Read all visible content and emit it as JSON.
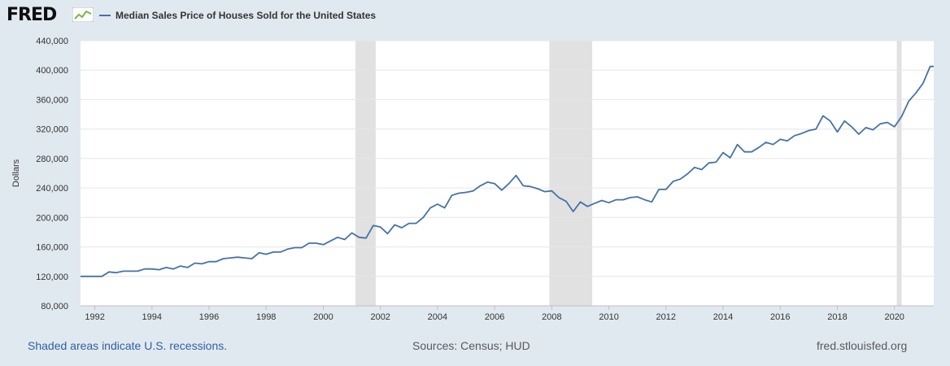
{
  "header": {
    "logo_text": "FRED",
    "logo_icon": "mini-line-chart-icon",
    "legend_label": "Median Sales Price of Houses Sold for the United States"
  },
  "footer": {
    "recession_note": "Shaded areas indicate U.S. recessions.",
    "sources": "Sources: Census; HUD",
    "site": "fred.stlouisfed.org"
  },
  "colors": {
    "line": "#4572a7",
    "recession": "#e1e1e1",
    "page_bg": "#e1e9f0",
    "plot_bg": "#ffffff",
    "grid": "#e6e6e6"
  },
  "chart_data": {
    "type": "line",
    "title": "",
    "xlabel": "",
    "ylabel": "Dollars",
    "xlim": [
      1991.5,
      2021.375
    ],
    "ylim": [
      80000,
      440000
    ],
    "grid": true,
    "legend_position": "top-left",
    "x_ticks": [
      1992,
      1994,
      1996,
      1998,
      2000,
      2002,
      2004,
      2006,
      2008,
      2010,
      2012,
      2014,
      2016,
      2018,
      2020
    ],
    "x_tick_labels": [
      "1992",
      "1994",
      "1996",
      "1998",
      "2000",
      "2002",
      "2004",
      "2006",
      "2008",
      "2010",
      "2012",
      "2014",
      "2016",
      "2018",
      "2020"
    ],
    "y_ticks": [
      80000,
      120000,
      160000,
      200000,
      240000,
      280000,
      320000,
      360000,
      400000,
      440000
    ],
    "y_tick_labels": [
      "80,000",
      "120,000",
      "160,000",
      "200,000",
      "240,000",
      "280,000",
      "320,000",
      "360,000",
      "400,000",
      "440,000"
    ],
    "recessions": [
      [
        2001.125,
        2001.833
      ],
      [
        2007.917,
        2009.417
      ],
      [
        2020.083,
        2020.25
      ]
    ],
    "series": [
      {
        "name": "Median Sales Price of Houses Sold for the United States",
        "x": [
          1991.5,
          1991.75,
          1992.0,
          1992.25,
          1992.5,
          1992.75,
          1993.0,
          1993.25,
          1993.5,
          1993.75,
          1994.0,
          1994.25,
          1994.5,
          1994.75,
          1995.0,
          1995.25,
          1995.5,
          1995.75,
          1996.0,
          1996.25,
          1996.5,
          1996.75,
          1997.0,
          1997.25,
          1997.5,
          1997.75,
          1998.0,
          1998.25,
          1998.5,
          1998.75,
          1999.0,
          1999.25,
          1999.5,
          1999.75,
          2000.0,
          2000.25,
          2000.5,
          2000.75,
          2001.0,
          2001.25,
          2001.5,
          2001.75,
          2002.0,
          2002.25,
          2002.5,
          2002.75,
          2003.0,
          2003.25,
          2003.5,
          2003.75,
          2004.0,
          2004.25,
          2004.5,
          2004.75,
          2005.0,
          2005.25,
          2005.5,
          2005.75,
          2006.0,
          2006.25,
          2006.5,
          2006.75,
          2007.0,
          2007.25,
          2007.5,
          2007.75,
          2008.0,
          2008.25,
          2008.5,
          2008.75,
          2009.0,
          2009.25,
          2009.5,
          2009.75,
          2010.0,
          2010.25,
          2010.5,
          2010.75,
          2011.0,
          2011.25,
          2011.5,
          2011.75,
          2012.0,
          2012.25,
          2012.5,
          2012.75,
          2013.0,
          2013.25,
          2013.5,
          2013.75,
          2014.0,
          2014.25,
          2014.5,
          2014.75,
          2015.0,
          2015.25,
          2015.5,
          2015.75,
          2016.0,
          2016.25,
          2016.5,
          2016.75,
          2017.0,
          2017.25,
          2017.5,
          2017.75,
          2018.0,
          2018.25,
          2018.5,
          2018.75,
          2019.0,
          2019.25,
          2019.5,
          2019.75,
          2020.0,
          2020.25,
          2020.5,
          2020.75,
          2021.0,
          2021.25,
          2021.375
        ],
        "values": [
          120000,
          120000,
          120000,
          120000,
          126000,
          125000,
          127000,
          127000,
          127000,
          130000,
          130000,
          129000,
          132000,
          130000,
          134000,
          132000,
          138000,
          137000,
          140000,
          140000,
          144000,
          145000,
          146000,
          145000,
          144000,
          152000,
          150000,
          153000,
          153000,
          157000,
          159000,
          159000,
          165000,
          165000,
          163000,
          168000,
          173000,
          170000,
          179000,
          173000,
          172000,
          189000,
          187000,
          178000,
          190000,
          186000,
          192000,
          192000,
          200000,
          213000,
          218000,
          213000,
          230000,
          233000,
          234000,
          236000,
          243000,
          248000,
          246000,
          237000,
          246000,
          257000,
          243000,
          242000,
          239000,
          235000,
          236000,
          227000,
          222000,
          208000,
          221000,
          215000,
          219000,
          223000,
          220000,
          224000,
          224000,
          227000,
          228000,
          224000,
          221000,
          238000,
          238000,
          249000,
          252000,
          259000,
          268000,
          265000,
          274000,
          275000,
          288000,
          281000,
          299000,
          289000,
          289000,
          295000,
          302000,
          299000,
          306000,
          304000,
          311000,
          314000,
          318000,
          320000,
          338000,
          331000,
          316000,
          331000,
          323000,
          313000,
          322000,
          319000,
          327000,
          329000,
          323000,
          337000,
          358000,
          369000,
          382000,
          405000,
          405000
        ]
      }
    ]
  }
}
